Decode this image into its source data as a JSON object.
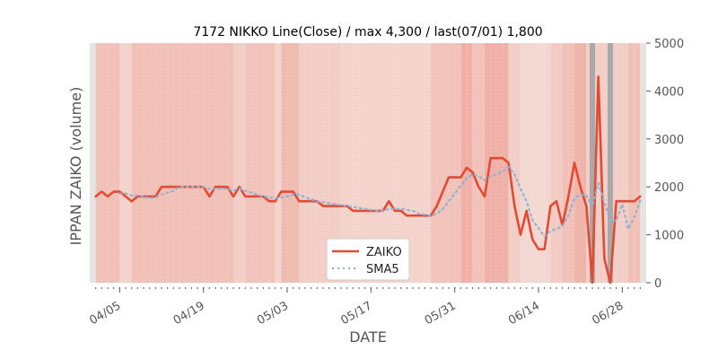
{
  "chart_data": {
    "type": "line",
    "title": "7172 NIKKO Line(Close) / max 4,300 / last(07/01) 1,800",
    "xlabel": "DATE",
    "ylabel": "IPPAN ZAIKO (volume)",
    "ylim": [
      0,
      5000
    ],
    "yticks": [
      0,
      1000,
      2000,
      3000,
      4000,
      5000
    ],
    "y_axis_side": "right",
    "grid": false,
    "legend_position": "lower-center",
    "x_start": "2024-03-31",
    "x_end": "2024-07-02",
    "xticks": [
      {
        "date": "2024-04-05",
        "label": "04/05"
      },
      {
        "date": "2024-04-19",
        "label": "04/19"
      },
      {
        "date": "2024-05-03",
        "label": "05/03"
      },
      {
        "date": "2024-05-17",
        "label": "05/17"
      },
      {
        "date": "2024-05-31",
        "label": "05/31"
      },
      {
        "date": "2024-06-14",
        "label": "06/14"
      },
      {
        "date": "2024-06-28",
        "label": "06/28"
      }
    ],
    "colors": {
      "zaiko": "#e24a33",
      "sma5": "#92b2d4",
      "band_base": "#f4ddd8",
      "marker": "#a9a9a9",
      "edge": "#e4e4e4"
    },
    "series": [
      {
        "name": "ZAIKO",
        "style": "solid",
        "points": [
          [
            "2024-04-01",
            1800
          ],
          [
            "2024-04-02",
            1900
          ],
          [
            "2024-04-03",
            1800
          ],
          [
            "2024-04-04",
            1900
          ],
          [
            "2024-04-05",
            1900
          ],
          [
            "2024-04-06",
            1800
          ],
          [
            "2024-04-07",
            1700
          ],
          [
            "2024-04-08",
            1800
          ],
          [
            "2024-04-09",
            1800
          ],
          [
            "2024-04-10",
            1800
          ],
          [
            "2024-04-11",
            1800
          ],
          [
            "2024-04-12",
            2000
          ],
          [
            "2024-04-13",
            2000
          ],
          [
            "2024-04-14",
            2000
          ],
          [
            "2024-04-15",
            2000
          ],
          [
            "2024-04-16",
            2000
          ],
          [
            "2024-04-17",
            2000
          ],
          [
            "2024-04-18",
            2000
          ],
          [
            "2024-04-19",
            2000
          ],
          [
            "2024-04-20",
            1800
          ],
          [
            "2024-04-21",
            2000
          ],
          [
            "2024-04-22",
            2000
          ],
          [
            "2024-04-23",
            2000
          ],
          [
            "2024-04-24",
            1800
          ],
          [
            "2024-04-25",
            2000
          ],
          [
            "2024-04-26",
            1800
          ],
          [
            "2024-04-27",
            1800
          ],
          [
            "2024-04-28",
            1800
          ],
          [
            "2024-04-29",
            1800
          ],
          [
            "2024-04-30",
            1700
          ],
          [
            "2024-05-01",
            1700
          ],
          [
            "2024-05-02",
            1900
          ],
          [
            "2024-05-03",
            1900
          ],
          [
            "2024-05-04",
            1900
          ],
          [
            "2024-05-05",
            1700
          ],
          [
            "2024-05-06",
            1700
          ],
          [
            "2024-05-07",
            1700
          ],
          [
            "2024-05-08",
            1700
          ],
          [
            "2024-05-09",
            1600
          ],
          [
            "2024-05-10",
            1600
          ],
          [
            "2024-05-11",
            1600
          ],
          [
            "2024-05-12",
            1600
          ],
          [
            "2024-05-13",
            1600
          ],
          [
            "2024-05-14",
            1500
          ],
          [
            "2024-05-15",
            1500
          ],
          [
            "2024-05-16",
            1500
          ],
          [
            "2024-05-17",
            1500
          ],
          [
            "2024-05-18",
            1500
          ],
          [
            "2024-05-19",
            1500
          ],
          [
            "2024-05-20",
            1700
          ],
          [
            "2024-05-21",
            1500
          ],
          [
            "2024-05-22",
            1500
          ],
          [
            "2024-05-23",
            1400
          ],
          [
            "2024-05-24",
            1400
          ],
          [
            "2024-05-25",
            1400
          ],
          [
            "2024-05-26",
            1400
          ],
          [
            "2024-05-27",
            1400
          ],
          [
            "2024-05-28",
            1600
          ],
          [
            "2024-05-29",
            1900
          ],
          [
            "2024-05-30",
            2200
          ],
          [
            "2024-05-31",
            2200
          ],
          [
            "2024-06-01",
            2200
          ],
          [
            "2024-06-02",
            2400
          ],
          [
            "2024-06-03",
            2300
          ],
          [
            "2024-06-04",
            2000
          ],
          [
            "2024-06-05",
            1800
          ],
          [
            "2024-06-06",
            2600
          ],
          [
            "2024-06-07",
            2600
          ],
          [
            "2024-06-08",
            2600
          ],
          [
            "2024-06-09",
            2500
          ],
          [
            "2024-06-10",
            1600
          ],
          [
            "2024-06-11",
            1000
          ],
          [
            "2024-06-12",
            1500
          ],
          [
            "2024-06-13",
            900
          ],
          [
            "2024-06-14",
            700
          ],
          [
            "2024-06-15",
            700
          ],
          [
            "2024-06-16",
            1600
          ],
          [
            "2024-06-17",
            1700
          ],
          [
            "2024-06-18",
            1200
          ],
          [
            "2024-06-19",
            1800
          ],
          [
            "2024-06-20",
            2500
          ],
          [
            "2024-06-21",
            2000
          ],
          [
            "2024-06-22",
            1600
          ],
          [
            "2024-06-23",
            0
          ],
          [
            "2024-06-24",
            4300
          ],
          [
            "2024-06-25",
            500
          ],
          [
            "2024-06-26",
            0
          ],
          [
            "2024-06-27",
            1700
          ],
          [
            "2024-06-28",
            1700
          ],
          [
            "2024-06-29",
            1700
          ],
          [
            "2024-06-30",
            1700
          ],
          [
            "2024-07-01",
            1800
          ]
        ]
      },
      {
        "name": "SMA5",
        "style": "dotted",
        "points": [
          [
            "2024-04-05",
            1860
          ],
          [
            "2024-04-06",
            1860
          ],
          [
            "2024-04-07",
            1820
          ],
          [
            "2024-04-08",
            1820
          ],
          [
            "2024-04-09",
            1800
          ],
          [
            "2024-04-10",
            1760
          ],
          [
            "2024-04-11",
            1780
          ],
          [
            "2024-04-12",
            1840
          ],
          [
            "2024-04-13",
            1880
          ],
          [
            "2024-04-14",
            1920
          ],
          [
            "2024-04-15",
            2000
          ],
          [
            "2024-04-16",
            2000
          ],
          [
            "2024-04-17",
            2000
          ],
          [
            "2024-04-18",
            2000
          ],
          [
            "2024-04-19",
            2000
          ],
          [
            "2024-04-20",
            1960
          ],
          [
            "2024-04-21",
            1960
          ],
          [
            "2024-04-22",
            1960
          ],
          [
            "2024-04-23",
            1960
          ],
          [
            "2024-04-24",
            1920
          ],
          [
            "2024-04-25",
            1960
          ],
          [
            "2024-04-26",
            1920
          ],
          [
            "2024-04-27",
            1880
          ],
          [
            "2024-04-28",
            1840
          ],
          [
            "2024-04-29",
            1800
          ],
          [
            "2024-04-30",
            1780
          ],
          [
            "2024-05-01",
            1760
          ],
          [
            "2024-05-02",
            1780
          ],
          [
            "2024-05-03",
            1800
          ],
          [
            "2024-05-04",
            1840
          ],
          [
            "2024-05-05",
            1840
          ],
          [
            "2024-05-06",
            1780
          ],
          [
            "2024-05-07",
            1740
          ],
          [
            "2024-05-08",
            1700
          ],
          [
            "2024-05-09",
            1680
          ],
          [
            "2024-05-10",
            1660
          ],
          [
            "2024-05-11",
            1640
          ],
          [
            "2024-05-12",
            1620
          ],
          [
            "2024-05-13",
            1600
          ],
          [
            "2024-05-14",
            1580
          ],
          [
            "2024-05-15",
            1560
          ],
          [
            "2024-05-16",
            1540
          ],
          [
            "2024-05-17",
            1520
          ],
          [
            "2024-05-18",
            1500
          ],
          [
            "2024-05-19",
            1500
          ],
          [
            "2024-05-20",
            1540
          ],
          [
            "2024-05-21",
            1540
          ],
          [
            "2024-05-22",
            1540
          ],
          [
            "2024-05-23",
            1520
          ],
          [
            "2024-05-24",
            1500
          ],
          [
            "2024-05-25",
            1440
          ],
          [
            "2024-05-26",
            1420
          ],
          [
            "2024-05-27",
            1400
          ],
          [
            "2024-05-28",
            1440
          ],
          [
            "2024-05-29",
            1540
          ],
          [
            "2024-05-30",
            1700
          ],
          [
            "2024-05-31",
            1860
          ],
          [
            "2024-06-01",
            2020
          ],
          [
            "2024-06-02",
            2180
          ],
          [
            "2024-06-03",
            2260
          ],
          [
            "2024-06-04",
            2220
          ],
          [
            "2024-06-05",
            2140
          ],
          [
            "2024-06-06",
            2220
          ],
          [
            "2024-06-07",
            2260
          ],
          [
            "2024-06-08",
            2320
          ],
          [
            "2024-06-09",
            2420
          ],
          [
            "2024-06-10",
            2260
          ],
          [
            "2024-06-11",
            1960
          ],
          [
            "2024-06-12",
            1700
          ],
          [
            "2024-06-13",
            1300
          ],
          [
            "2024-06-14",
            1140
          ],
          [
            "2024-06-15",
            960
          ],
          [
            "2024-06-16",
            1080
          ],
          [
            "2024-06-17",
            1120
          ],
          [
            "2024-06-18",
            1180
          ],
          [
            "2024-06-19",
            1400
          ],
          [
            "2024-06-20",
            1760
          ],
          [
            "2024-06-21",
            1840
          ],
          [
            "2024-06-22",
            1820
          ],
          [
            "2024-06-23",
            1580
          ],
          [
            "2024-06-24",
            2080
          ],
          [
            "2024-06-25",
            1680
          ],
          [
            "2024-06-26",
            1280
          ],
          [
            "2024-06-27",
            1300
          ],
          [
            "2024-06-28",
            1640
          ],
          [
            "2024-06-29",
            1120
          ],
          [
            "2024-06-30",
            1360
          ],
          [
            "2024-07-01",
            1720
          ]
        ]
      }
    ],
    "marked_dates": [
      "2024-06-23",
      "2024-06-26"
    ],
    "background_bands": [
      {
        "start": "2024-03-31",
        "end": "2024-04-01",
        "intensity": 0.0
      },
      {
        "start": "2024-04-01",
        "end": "2024-04-05",
        "intensity": 0.55
      },
      {
        "start": "2024-04-05",
        "end": "2024-04-07",
        "intensity": 0.2
      },
      {
        "start": "2024-04-07",
        "end": "2024-04-24",
        "intensity": 0.55
      },
      {
        "start": "2024-04-24",
        "end": "2024-04-26",
        "intensity": 0.3
      },
      {
        "start": "2024-04-26",
        "end": "2024-05-01",
        "intensity": 0.5
      },
      {
        "start": "2024-05-01",
        "end": "2024-05-02",
        "intensity": 0.2
      },
      {
        "start": "2024-05-02",
        "end": "2024-05-05",
        "intensity": 0.65
      },
      {
        "start": "2024-05-05",
        "end": "2024-05-12",
        "intensity": 0.3
      },
      {
        "start": "2024-05-12",
        "end": "2024-05-27",
        "intensity": 0.2
      },
      {
        "start": "2024-05-27",
        "end": "2024-06-01",
        "intensity": 0.5
      },
      {
        "start": "2024-06-01",
        "end": "2024-06-03",
        "intensity": 0.85
      },
      {
        "start": "2024-06-03",
        "end": "2024-06-05",
        "intensity": 0.5
      },
      {
        "start": "2024-06-05",
        "end": "2024-06-09",
        "intensity": 0.85
      },
      {
        "start": "2024-06-09",
        "end": "2024-06-11",
        "intensity": 0.3
      },
      {
        "start": "2024-06-11",
        "end": "2024-06-16",
        "intensity": 0.1
      },
      {
        "start": "2024-06-16",
        "end": "2024-06-18",
        "intensity": 0.35
      },
      {
        "start": "2024-06-18",
        "end": "2024-06-20",
        "intensity": 0.55
      },
      {
        "start": "2024-06-20",
        "end": "2024-06-22",
        "intensity": 0.8
      },
      {
        "start": "2024-06-22",
        "end": "2024-06-29",
        "intensity": 0.3
      },
      {
        "start": "2024-06-29",
        "end": "2024-07-01",
        "intensity": 0.55
      },
      {
        "start": "2024-07-01",
        "end": "2024-07-02",
        "intensity": 0.0
      }
    ],
    "legend": [
      {
        "label": "ZAIKO",
        "series": "ZAIKO"
      },
      {
        "label": "SMA5",
        "series": "SMA5"
      }
    ]
  }
}
